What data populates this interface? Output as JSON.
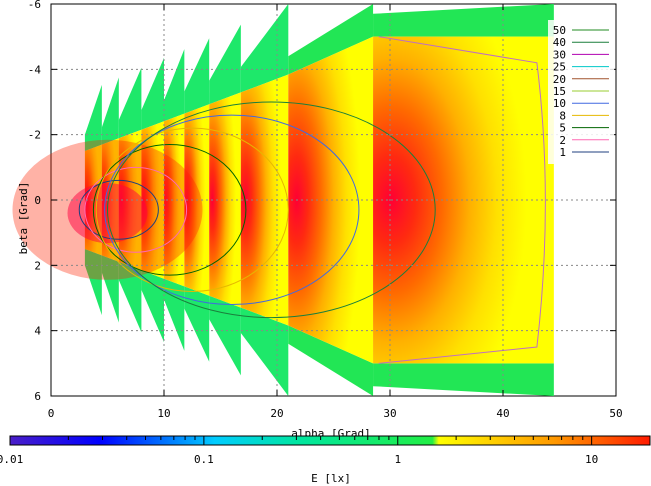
{
  "chart_data": {
    "type": "heatmap",
    "title": "",
    "xlabel": "alpha [Grad]",
    "ylabel": "beta [Grad]",
    "colorbar_label": "E [lx]",
    "xlim": [
      0,
      50
    ],
    "ylim": [
      6,
      -6
    ],
    "x_ticks": [
      "0",
      "10",
      "20",
      "30",
      "40",
      "50"
    ],
    "y_ticks": [
      "-6",
      "-4",
      "-2",
      "0",
      "2",
      "4",
      "6"
    ],
    "colorbar_ticks": [
      "0.01",
      "0.1",
      "1",
      "10"
    ],
    "colorbar_scale": "log",
    "colorbar_range": [
      0.01,
      20
    ],
    "grid": true,
    "legend_position": "top-right",
    "contour_levels": [
      {
        "label": "50",
        "color": "#228B22"
      },
      {
        "label": "40",
        "color": "#1a7f3c"
      },
      {
        "label": "30",
        "color": "#b000b0"
      },
      {
        "label": "25",
        "color": "#00c8c8"
      },
      {
        "label": "20",
        "color": "#a0522d"
      },
      {
        "label": "15",
        "color": "#9acd32"
      },
      {
        "label": "10",
        "color": "#4169e1"
      },
      {
        "label": "8",
        "color": "#e6b800"
      },
      {
        "label": "5",
        "color": "#006400"
      },
      {
        "label": "2",
        "color": "#ff69b4"
      },
      {
        "label": "1",
        "color": "#1f3f7f"
      }
    ],
    "segments": [
      {
        "x0": 3.0,
        "x1": 4.5
      },
      {
        "x0": 4.5,
        "x1": 6.0
      },
      {
        "x0": 6.0,
        "x1": 8.0
      },
      {
        "x0": 8.0,
        "x1": 10.0
      },
      {
        "x0": 10.0,
        "x1": 11.8
      },
      {
        "x0": 11.8,
        "x1": 14.0
      },
      {
        "x0": 14.0,
        "x1": 16.8
      },
      {
        "x0": 16.8,
        "x1": 21.0
      },
      {
        "x0": 21.0,
        "x1": 28.5
      },
      {
        "x0": 28.5,
        "x1": 44.5
      }
    ]
  }
}
